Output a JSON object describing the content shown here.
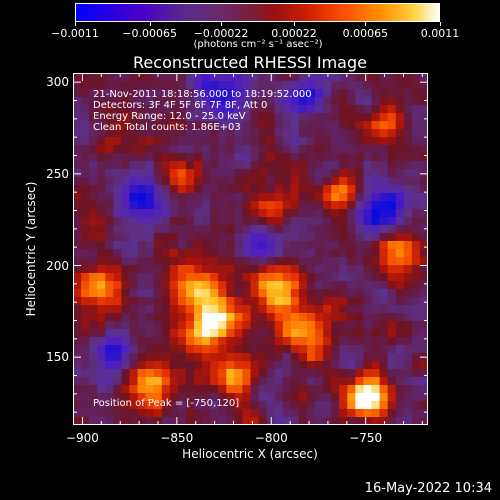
{
  "colorbar": {
    "tick_labels": [
      "-0.0011",
      "-0.00065",
      "-0.00022",
      "0.00022",
      "0.00065",
      "0.0011"
    ],
    "units": "(photons cm⁻² s⁻¹ asec⁻²)",
    "colors": [
      "#0000ff",
      "#5a2a8c",
      "#9a1010",
      "#ff5000",
      "#ffd040",
      "#ffffff"
    ]
  },
  "chart_data": {
    "type": "heatmap",
    "title": "Reconstructed RHESSI Image",
    "xlabel": "Heliocentric X (arcsec)",
    "ylabel": "Heliocentric Y (arcsec)",
    "xlim": [
      -905,
      -717
    ],
    "ylim": [
      113,
      305
    ],
    "x_ticks": [
      -900,
      -850,
      -800,
      -750
    ],
    "y_ticks": [
      150,
      200,
      250,
      300
    ],
    "x_tick_labels": [
      "-900",
      "-850",
      "-800",
      "-750"
    ],
    "y_tick_labels": [
      "150",
      "200",
      "250",
      "300"
    ],
    "peak": {
      "x": -750,
      "y": 120
    },
    "annotations": [
      "21-Nov-2011 18:18:56.000 to 18:19:52.000",
      "Detectors: 3F 4F 5F 6F 7F 8F, Att 0",
      "Energy Range: 12.0 - 25.0 keV",
      "Clean     Total counts: 1.86E+03"
    ],
    "peak_label": "Position of Peak = [-750,120]"
  },
  "timestamp": "16-May-2022 10:34"
}
